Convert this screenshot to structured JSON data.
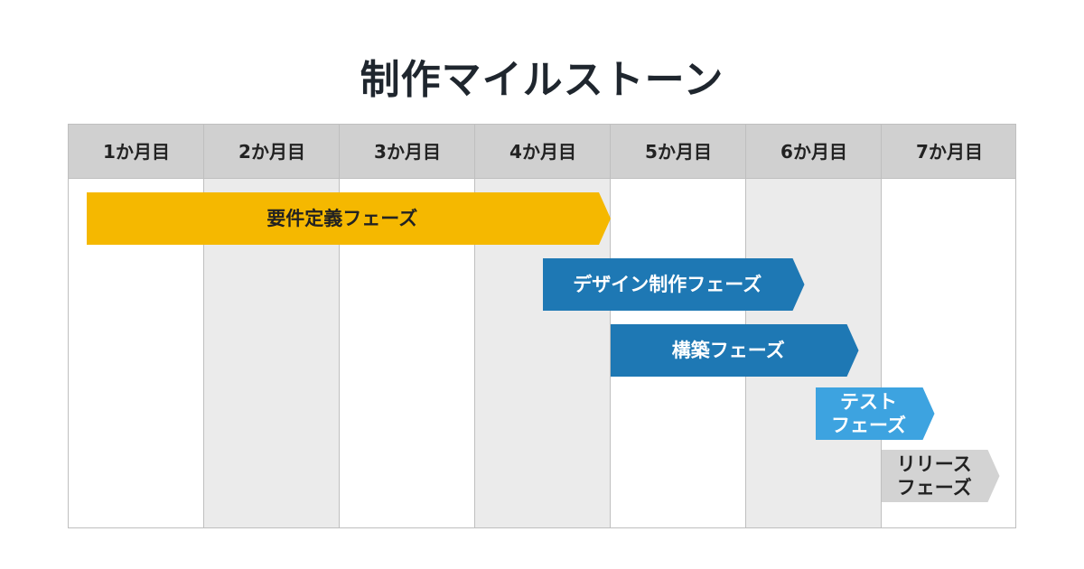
{
  "title": "制作マイルストーン",
  "months": [
    "1か月目",
    "2か月目",
    "3か月目",
    "4か月目",
    "5か月目",
    "6か月目",
    "7か月目"
  ],
  "phases": [
    {
      "label": "要件定義フェーズ",
      "start_month": 0.13,
      "end_month": 4.0,
      "color": "#f5b800",
      "text_color": "#222222"
    },
    {
      "label": "デザイン制作フェーズ",
      "start_month": 3.5,
      "end_month": 5.43,
      "color": "#1e78b4",
      "text_color": "#ffffff"
    },
    {
      "label": "構築フェーズ",
      "start_month": 4.0,
      "end_month": 5.83,
      "color": "#1e78b4",
      "text_color": "#ffffff"
    },
    {
      "label": "テスト\nフェーズ",
      "start_month": 5.51,
      "end_month": 6.39,
      "color": "#3da3e0",
      "text_color": "#ffffff"
    },
    {
      "label": "リリース\nフェーズ",
      "start_month": 6.0,
      "end_month": 6.87,
      "color": "#d3d3d3",
      "text_color": "#222222"
    }
  ],
  "colors": {
    "header_bg": "#d0d0d0",
    "shaded_column": "#ebebeb",
    "grid": "#bfbfbf"
  }
}
